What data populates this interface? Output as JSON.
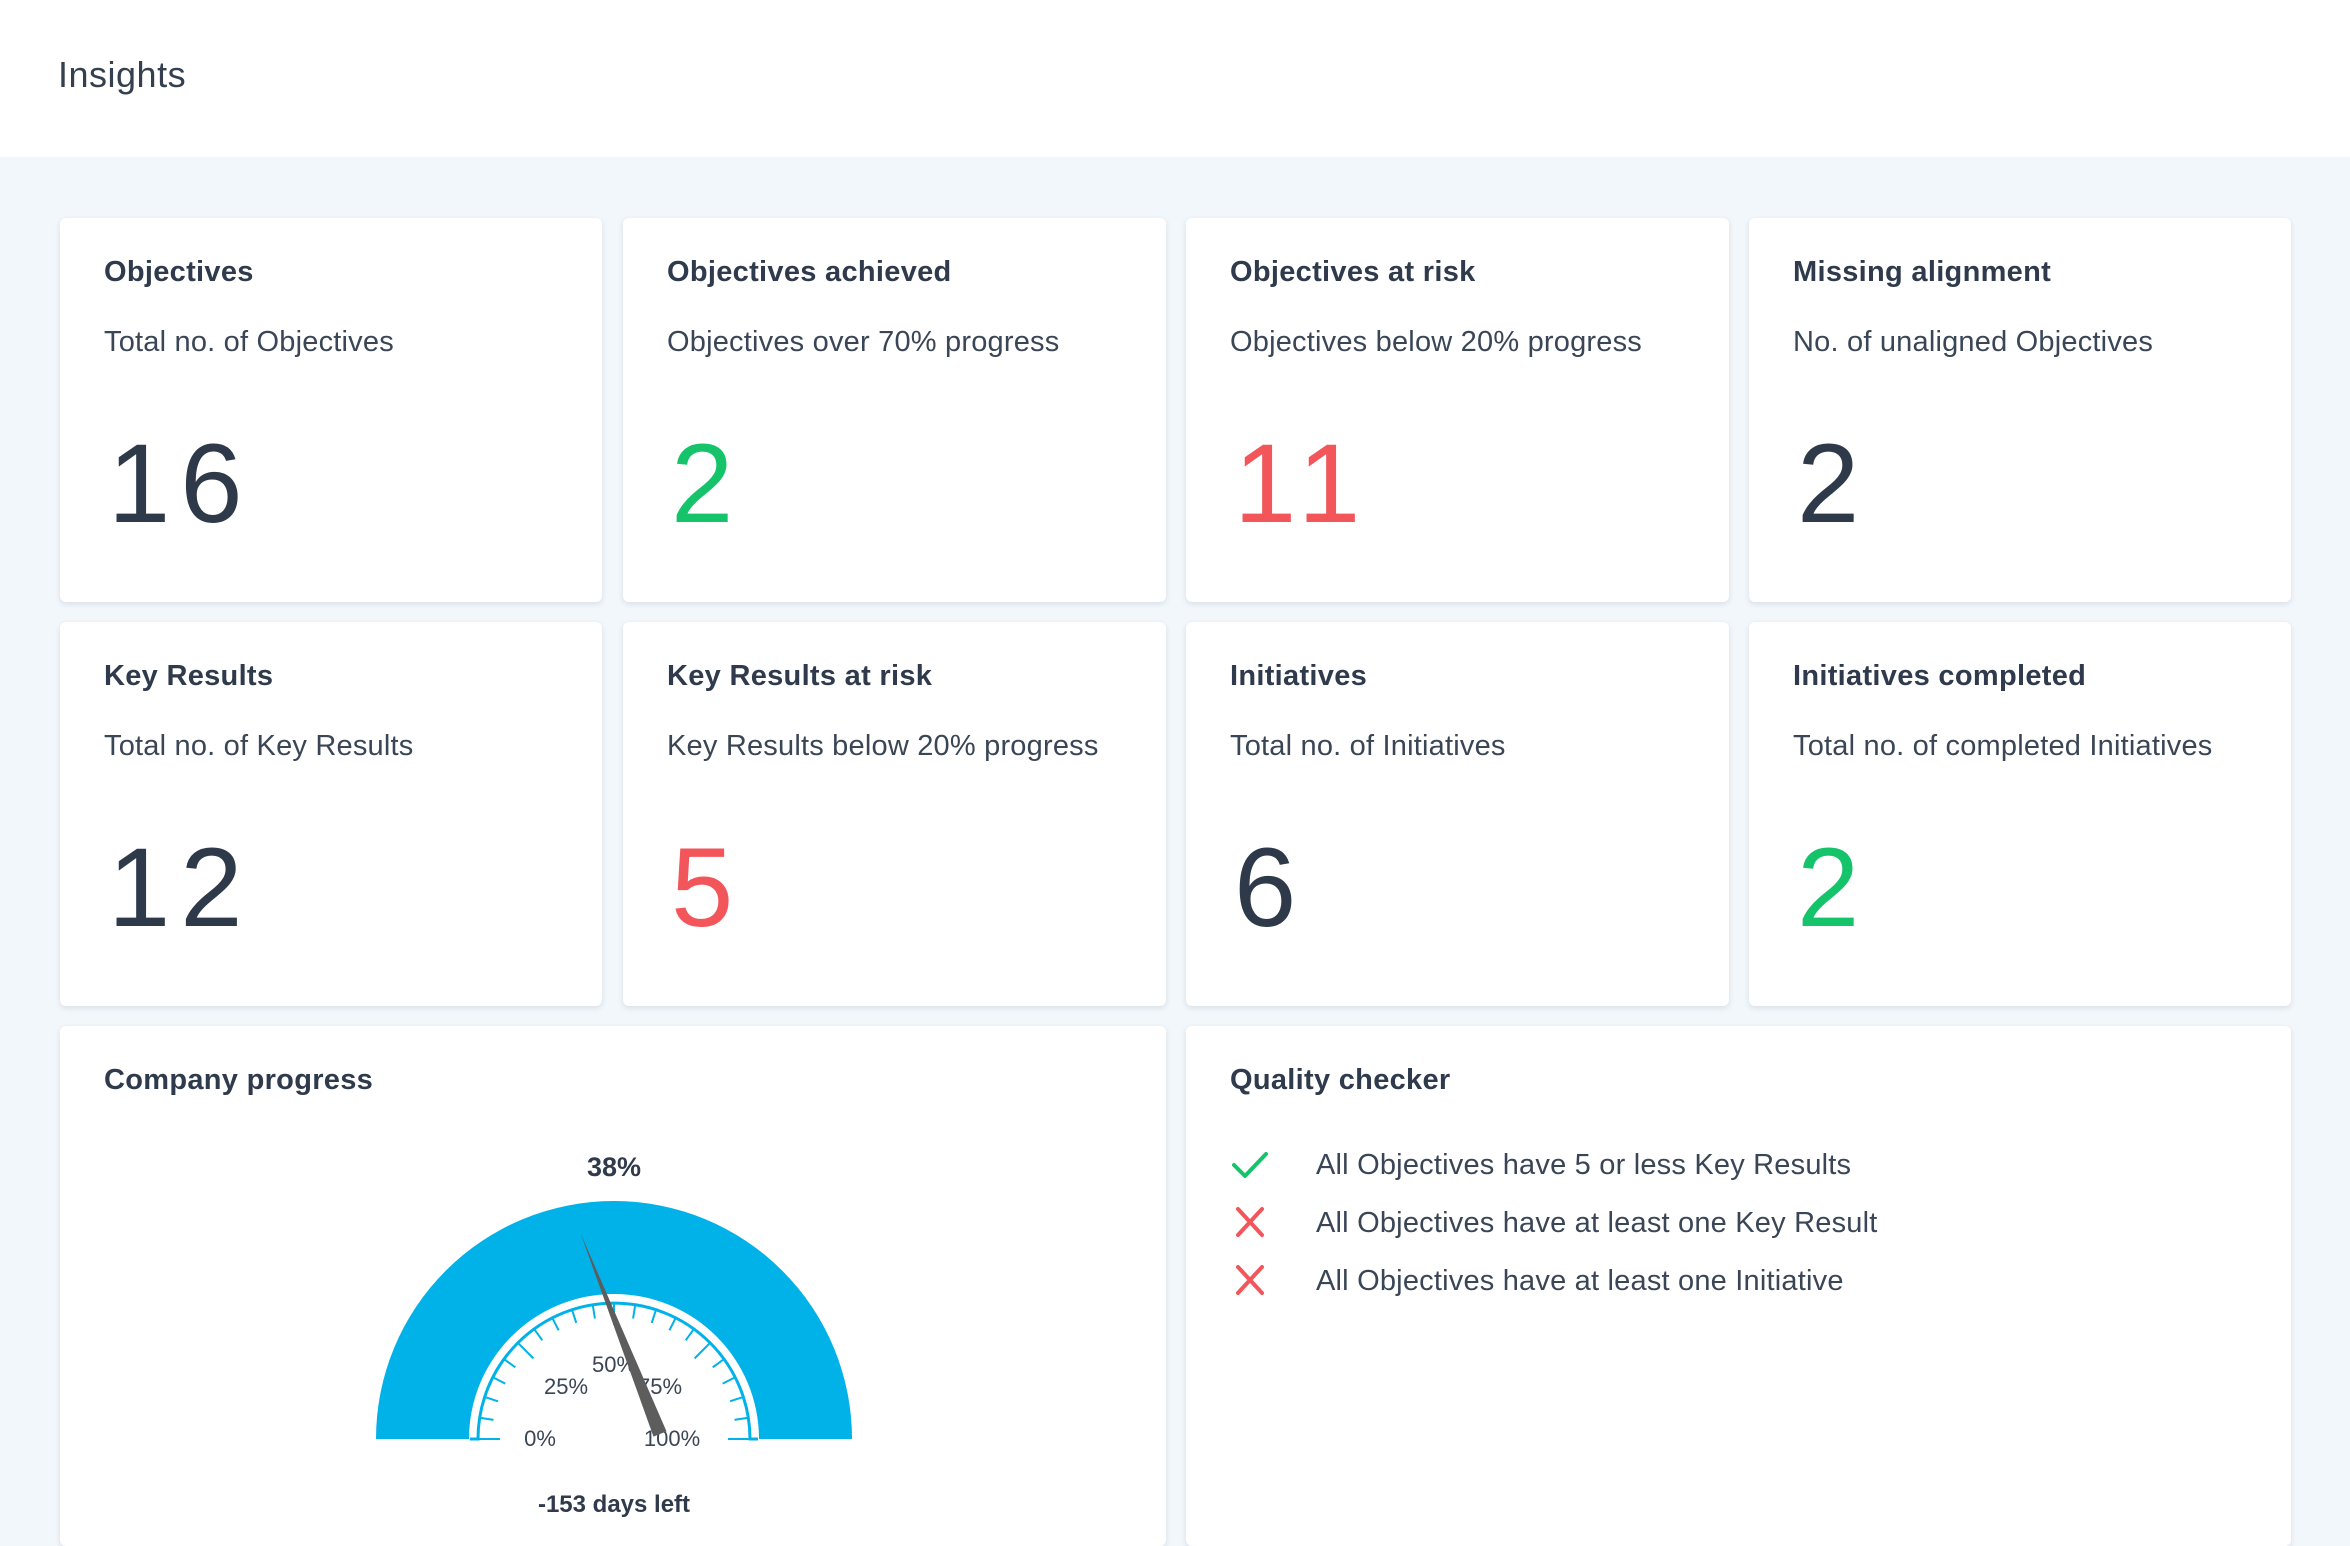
{
  "header": {
    "title": "Insights"
  },
  "colors": {
    "green": "#15c46a",
    "red": "#f2565b",
    "dark": "#2e3a4a",
    "gauge": "#00b2e8"
  },
  "metrics": [
    {
      "title": "Objectives",
      "subtitle": "Total no. of Objectives",
      "value": "16",
      "tone": "dark"
    },
    {
      "title": "Objectives achieved",
      "subtitle": "Objectives over 70% progress",
      "value": "2",
      "tone": "green"
    },
    {
      "title": "Objectives at risk",
      "subtitle": "Objectives below 20% progress",
      "value": "11",
      "tone": "red"
    },
    {
      "title": "Missing alignment",
      "subtitle": "No. of unaligned Objectives",
      "value": "2",
      "tone": "dark"
    },
    {
      "title": "Key Results",
      "subtitle": "Total no. of Key Results",
      "value": "12",
      "tone": "dark"
    },
    {
      "title": "Key Results at risk",
      "subtitle": "Key Results below 20% progress",
      "value": "5",
      "tone": "red"
    },
    {
      "title": "Initiatives",
      "subtitle": "Total no. of Initiatives",
      "value": "6",
      "tone": "dark"
    },
    {
      "title": "Initiatives completed",
      "subtitle": "Total no. of completed Initiatives",
      "value": "2",
      "tone": "green"
    }
  ],
  "progress": {
    "title": "Company progress",
    "value_label": "38%",
    "value": 38,
    "ticks": [
      "0%",
      "25%",
      "50%",
      "75%",
      "100%"
    ],
    "days_left": "-153 days left"
  },
  "quality": {
    "title": "Quality checker",
    "items": [
      {
        "text": "All Objectives have 5 or less Key Results",
        "status": "check-icon"
      },
      {
        "text": "All Objectives have at least one Key Result",
        "status": "cross-icon"
      },
      {
        "text": "All Objectives have at least one Initiative",
        "status": "cross-icon"
      }
    ]
  }
}
